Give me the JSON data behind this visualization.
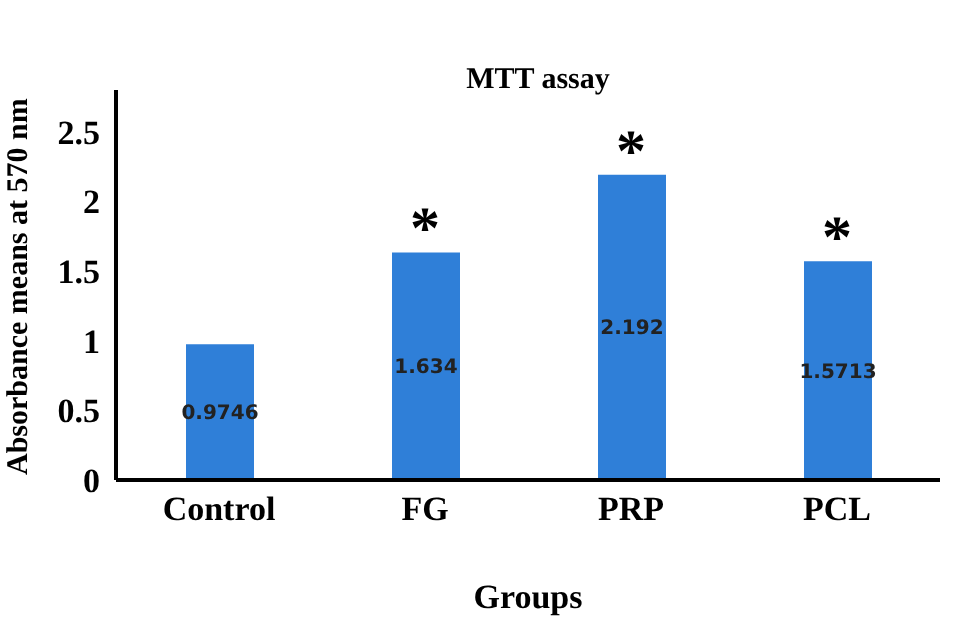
{
  "chart_data": {
    "type": "bar",
    "title": "MTT assay",
    "xlabel": "Groups",
    "ylabel": "Absorbance means at 570 nm",
    "categories": [
      "Control",
      "FG",
      "PRP",
      "PCL"
    ],
    "values": [
      0.9746,
      1.634,
      2.192,
      1.5713
    ],
    "color": "#2f7fd8",
    "ylim": [
      0,
      2.8
    ],
    "yticks": [
      0,
      0.5,
      1,
      1.5,
      2,
      2.5
    ],
    "grid": false,
    "data_labels": true,
    "annotations": [
      {
        "text": "*",
        "x": "FG",
        "y": 1.634
      },
      {
        "text": "*",
        "x": "PRP",
        "y": 2.192
      },
      {
        "text": "*",
        "x": "PCL",
        "y": 1.5713
      }
    ]
  }
}
